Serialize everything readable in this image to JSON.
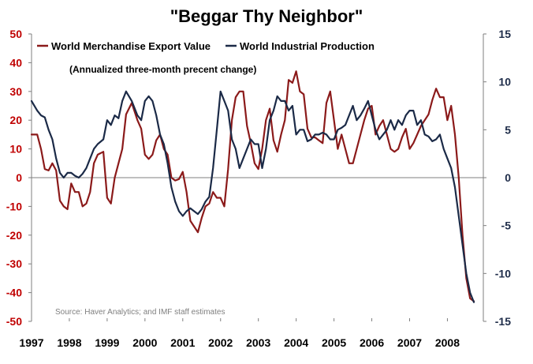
{
  "chart_data": {
    "type": "line",
    "title": "\"Beggar Thy Neighbor\"",
    "subtitle": "(Annualized three-month precent change)",
    "source": "Source: Haver Analytics; and IMF staff estimates",
    "xlabel": "",
    "ylabel": "",
    "x_tick_labels": [
      "1997",
      "1998",
      "1999",
      "2000",
      "2001",
      "2002",
      "2003",
      "2004",
      "2005",
      "2006",
      "2007",
      "2008"
    ],
    "x_range": [
      1997.0,
      2008.95
    ],
    "y_left": {
      "range": [
        -50,
        50
      ],
      "ticks": [
        50,
        40,
        30,
        20,
        10,
        0,
        -10,
        -20,
        -30,
        -40,
        -50
      ]
    },
    "y_right": {
      "range": [
        -15,
        15
      ],
      "ticks": [
        15,
        10,
        5,
        0,
        -5,
        -10,
        -15
      ]
    },
    "grid": false,
    "legend_position": "top",
    "series": [
      {
        "name": "World Merchandise Export Value",
        "axis": "left",
        "color": "#8b1a1a",
        "x": [
          1997.0,
          1997.15,
          1997.25,
          1997.35,
          1997.45,
          1997.55,
          1997.65,
          1997.75,
          1997.85,
          1997.95,
          1998.05,
          1998.15,
          1998.25,
          1998.35,
          1998.45,
          1998.55,
          1998.65,
          1998.75,
          1998.9,
          1999.0,
          1999.1,
          1999.2,
          1999.3,
          1999.4,
          1999.5,
          1999.65,
          1999.8,
          1999.9,
          2000.0,
          2000.1,
          2000.2,
          2000.3,
          2000.4,
          2000.5,
          2000.6,
          2000.7,
          2000.8,
          2000.9,
          2001.0,
          2001.1,
          2001.2,
          2001.3,
          2001.4,
          2001.5,
          2001.6,
          2001.7,
          2001.8,
          2001.9,
          2002.0,
          2002.1,
          2002.2,
          2002.3,
          2002.4,
          2002.5,
          2002.6,
          2002.7,
          2002.8,
          2002.9,
          2003.0,
          2003.1,
          2003.2,
          2003.3,
          2003.4,
          2003.5,
          2003.6,
          2003.7,
          2003.8,
          2003.9,
          2004.0,
          2004.1,
          2004.2,
          2004.3,
          2004.4,
          2004.5,
          2004.6,
          2004.7,
          2004.8,
          2004.9,
          2005.0,
          2005.1,
          2005.2,
          2005.3,
          2005.4,
          2005.5,
          2005.6,
          2005.7,
          2005.8,
          2005.9,
          2006.0,
          2006.1,
          2006.2,
          2006.3,
          2006.4,
          2006.5,
          2006.6,
          2006.7,
          2006.8,
          2006.9,
          2007.0,
          2007.1,
          2007.2,
          2007.3,
          2007.4,
          2007.5,
          2007.6,
          2007.7,
          2007.8,
          2007.9,
          2008.0,
          2008.1,
          2008.2,
          2008.3,
          2008.4,
          2008.5,
          2008.6,
          2008.7
        ],
        "y": [
          15,
          15,
          10,
          3,
          2.5,
          5,
          2.5,
          -8,
          -10,
          -11,
          -2,
          -5,
          -5,
          -10,
          -9,
          -5,
          5,
          8,
          9,
          -7,
          -9,
          0,
          5,
          10,
          22,
          26,
          20,
          17,
          8,
          6.5,
          8,
          13,
          15,
          10,
          8,
          0,
          -1,
          -0.5,
          2,
          -5,
          -15,
          -17,
          -19,
          -14,
          -10,
          -9,
          -5,
          -7,
          -7,
          -10,
          3,
          20,
          28,
          30,
          30,
          18,
          12,
          5,
          3,
          10,
          20,
          24,
          13,
          9,
          15,
          20,
          34,
          33,
          37,
          30,
          29,
          17,
          14,
          14,
          13,
          12,
          26,
          30,
          20,
          10,
          15,
          10,
          5,
          5,
          10,
          15,
          20,
          24,
          25,
          15,
          18,
          20,
          15,
          10,
          9,
          10,
          14,
          17,
          10,
          12,
          15,
          18,
          20,
          22,
          27,
          31,
          28,
          28,
          20,
          25,
          15,
          0,
          -20,
          -35,
          -42,
          -43
        ]
      },
      {
        "name": "World Industrial Production",
        "axis": "right",
        "color": "#1b2a47",
        "x": [
          1997.0,
          1997.15,
          1997.25,
          1997.35,
          1997.45,
          1997.55,
          1997.65,
          1997.75,
          1997.85,
          1997.95,
          1998.05,
          1998.15,
          1998.25,
          1998.35,
          1998.45,
          1998.55,
          1998.65,
          1998.75,
          1998.9,
          1999.0,
          1999.1,
          1999.2,
          1999.3,
          1999.4,
          1999.5,
          1999.65,
          1999.8,
          1999.9,
          2000.0,
          2000.1,
          2000.2,
          2000.3,
          2000.4,
          2000.5,
          2000.6,
          2000.7,
          2000.8,
          2000.9,
          2001.0,
          2001.1,
          2001.2,
          2001.3,
          2001.4,
          2001.5,
          2001.6,
          2001.7,
          2001.8,
          2001.9,
          2002.0,
          2002.1,
          2002.2,
          2002.3,
          2002.4,
          2002.5,
          2002.6,
          2002.7,
          2002.8,
          2002.9,
          2003.0,
          2003.1,
          2003.2,
          2003.3,
          2003.4,
          2003.5,
          2003.6,
          2003.7,
          2003.8,
          2003.9,
          2004.0,
          2004.1,
          2004.2,
          2004.3,
          2004.4,
          2004.5,
          2004.6,
          2004.7,
          2004.8,
          2004.9,
          2005.0,
          2005.1,
          2005.2,
          2005.3,
          2005.4,
          2005.5,
          2005.6,
          2005.7,
          2005.8,
          2005.9,
          2006.0,
          2006.1,
          2006.2,
          2006.3,
          2006.4,
          2006.5,
          2006.6,
          2006.7,
          2006.8,
          2006.9,
          2007.0,
          2007.1,
          2007.2,
          2007.3,
          2007.4,
          2007.5,
          2007.6,
          2007.7,
          2007.8,
          2007.9,
          2008.0,
          2008.1,
          2008.2,
          2008.3,
          2008.4,
          2008.5,
          2008.6,
          2008.7
        ],
        "y": [
          8,
          7,
          6.5,
          6.3,
          5,
          4,
          2,
          0.5,
          0,
          0.5,
          0.5,
          0.2,
          0,
          0.4,
          1,
          2,
          3,
          3.5,
          4,
          6,
          5.5,
          6.5,
          6.2,
          8,
          9,
          8,
          6.5,
          6,
          8,
          8.5,
          8,
          6.5,
          4.5,
          3.5,
          1.5,
          -1,
          -2.5,
          -3.5,
          -4,
          -3.5,
          -3.2,
          -3.5,
          -3.8,
          -3.3,
          -2.5,
          -2,
          1,
          5,
          9,
          8,
          7,
          4,
          3,
          1,
          2,
          3,
          4,
          3.5,
          3.5,
          1,
          3,
          6,
          7,
          8.5,
          8,
          8,
          7,
          7.5,
          4.5,
          5,
          5,
          3.8,
          4,
          4.5,
          4.5,
          4.7,
          4.5,
          4,
          4,
          5,
          5.2,
          5.5,
          6.5,
          7.5,
          6,
          6.5,
          7.2,
          8,
          6.5,
          5,
          4,
          4.5,
          5,
          6,
          5,
          6,
          5.5,
          6.5,
          7,
          7,
          5.5,
          6,
          4.5,
          4.3,
          3.8,
          4,
          4.5,
          3,
          2,
          1,
          -1,
          -4,
          -7,
          -10,
          -12,
          -13
        ]
      }
    ]
  }
}
